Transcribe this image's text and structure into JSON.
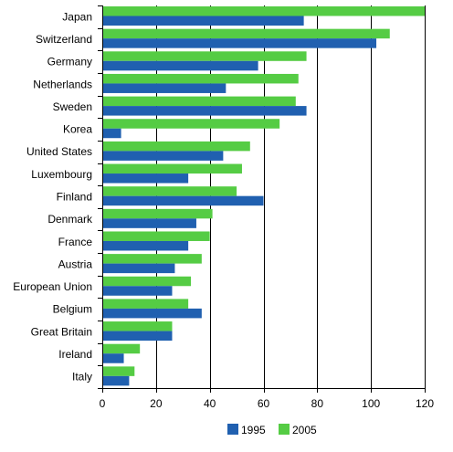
{
  "chart_data": {
    "type": "bar",
    "orientation": "horizontal",
    "categories": [
      "Japan",
      "Switzerland",
      "Germany",
      "Netherlands",
      "Sweden",
      "Korea",
      "United States",
      "Luxembourg",
      "Finland",
      "Denmark",
      "France",
      "Austria",
      "European Union",
      "Belgium",
      "Great Britain",
      "Ireland",
      "Italy"
    ],
    "series": [
      {
        "name": "1995",
        "color": "#2060b0",
        "values": [
          75,
          102,
          58,
          46,
          76,
          7,
          45,
          32,
          60,
          35,
          32,
          27,
          26,
          37,
          26,
          8,
          10
        ]
      },
      {
        "name": "2005",
        "color": "#55cc44",
        "values": [
          120,
          107,
          76,
          73,
          72,
          66,
          55,
          52,
          50,
          41,
          40,
          37,
          33,
          32,
          26,
          14,
          12
        ]
      }
    ],
    "xlim": [
      0,
      120
    ],
    "xticks": [
      0,
      20,
      40,
      60,
      80,
      100,
      120
    ],
    "grid": true,
    "legend": "bottom",
    "title": "",
    "xlabel": "",
    "ylabel": ""
  }
}
